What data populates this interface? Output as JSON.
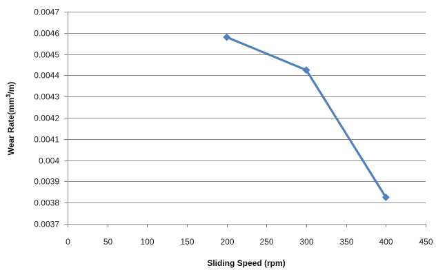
{
  "chart_data": {
    "type": "line",
    "title": "",
    "xlabel": "Sliding Speed (rpm)",
    "ylabel_main": "Wear Rate(mm",
    "ylabel_sup": "3",
    "ylabel_tail": "/m)",
    "xlim": [
      0,
      450
    ],
    "ylim": [
      0.0037,
      0.0047
    ],
    "x_ticks": [
      0,
      50,
      100,
      150,
      200,
      250,
      300,
      350,
      400,
      450
    ],
    "x_tick_labels": [
      "0",
      "50",
      "100",
      "150",
      "200",
      "250",
      "300",
      "350",
      "400",
      "450"
    ],
    "y_ticks": [
      0.0037,
      0.0038,
      0.0039,
      0.004,
      0.0041,
      0.0042,
      0.0043,
      0.0044,
      0.0045,
      0.0046,
      0.0047
    ],
    "y_tick_labels": [
      "0.0037",
      "0.0038",
      "0.0039",
      "0.004",
      "0.0041",
      "0.0042",
      "0.0043",
      "0.0044",
      "0.0045",
      "0.0046",
      "0.0047"
    ],
    "grid": true,
    "legend": "none",
    "series": [
      {
        "x": [
          200,
          300,
          400
        ],
        "y": [
          0.00458,
          0.004425,
          0.003825
        ],
        "color": "#4F81BD",
        "marker": "diamond"
      }
    ],
    "colors": {
      "grid": "#8c8c8c",
      "axis": "#8c8c8c"
    }
  }
}
